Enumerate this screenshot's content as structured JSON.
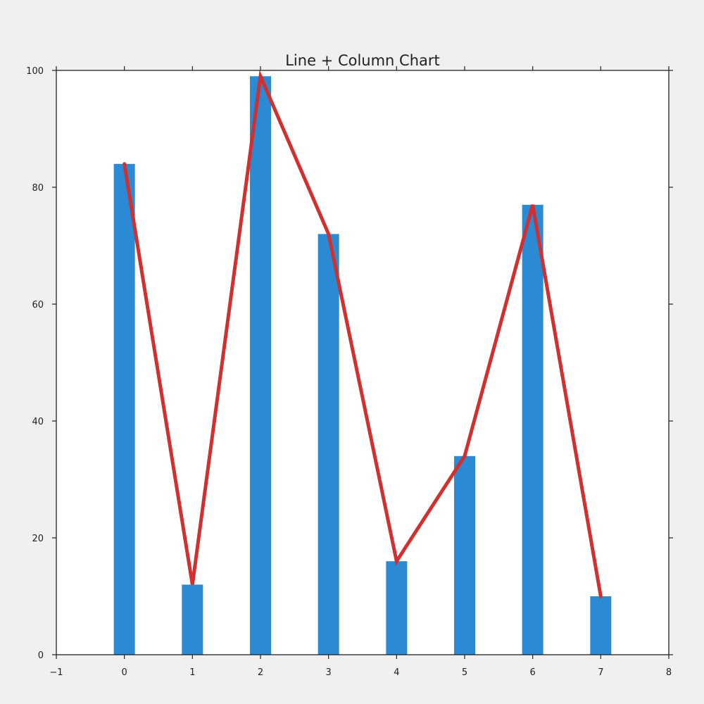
{
  "chart_data": {
    "type": "bar",
    "title": "Line + Column Chart",
    "xlabel": "",
    "ylabel": "",
    "x": [
      0,
      1,
      2,
      3,
      4,
      5,
      6,
      7
    ],
    "values": [
      84,
      12,
      99,
      72,
      16,
      34,
      77,
      10
    ],
    "line": [
      84,
      12,
      99,
      72,
      16,
      34,
      77,
      10
    ],
    "xlim": [
      -1,
      8
    ],
    "ylim": [
      0,
      100
    ],
    "xticks": [
      "−1",
      "0",
      "1",
      "2",
      "3",
      "4",
      "5",
      "6",
      "7",
      "8"
    ],
    "yticks": [
      "0",
      "20",
      "40",
      "60",
      "80",
      "100"
    ],
    "grid": false,
    "bar_color": "#2a8bd4",
    "line_color": "#d32f2f",
    "background": "#f0f0f0",
    "plot_background": "#ffffff"
  }
}
